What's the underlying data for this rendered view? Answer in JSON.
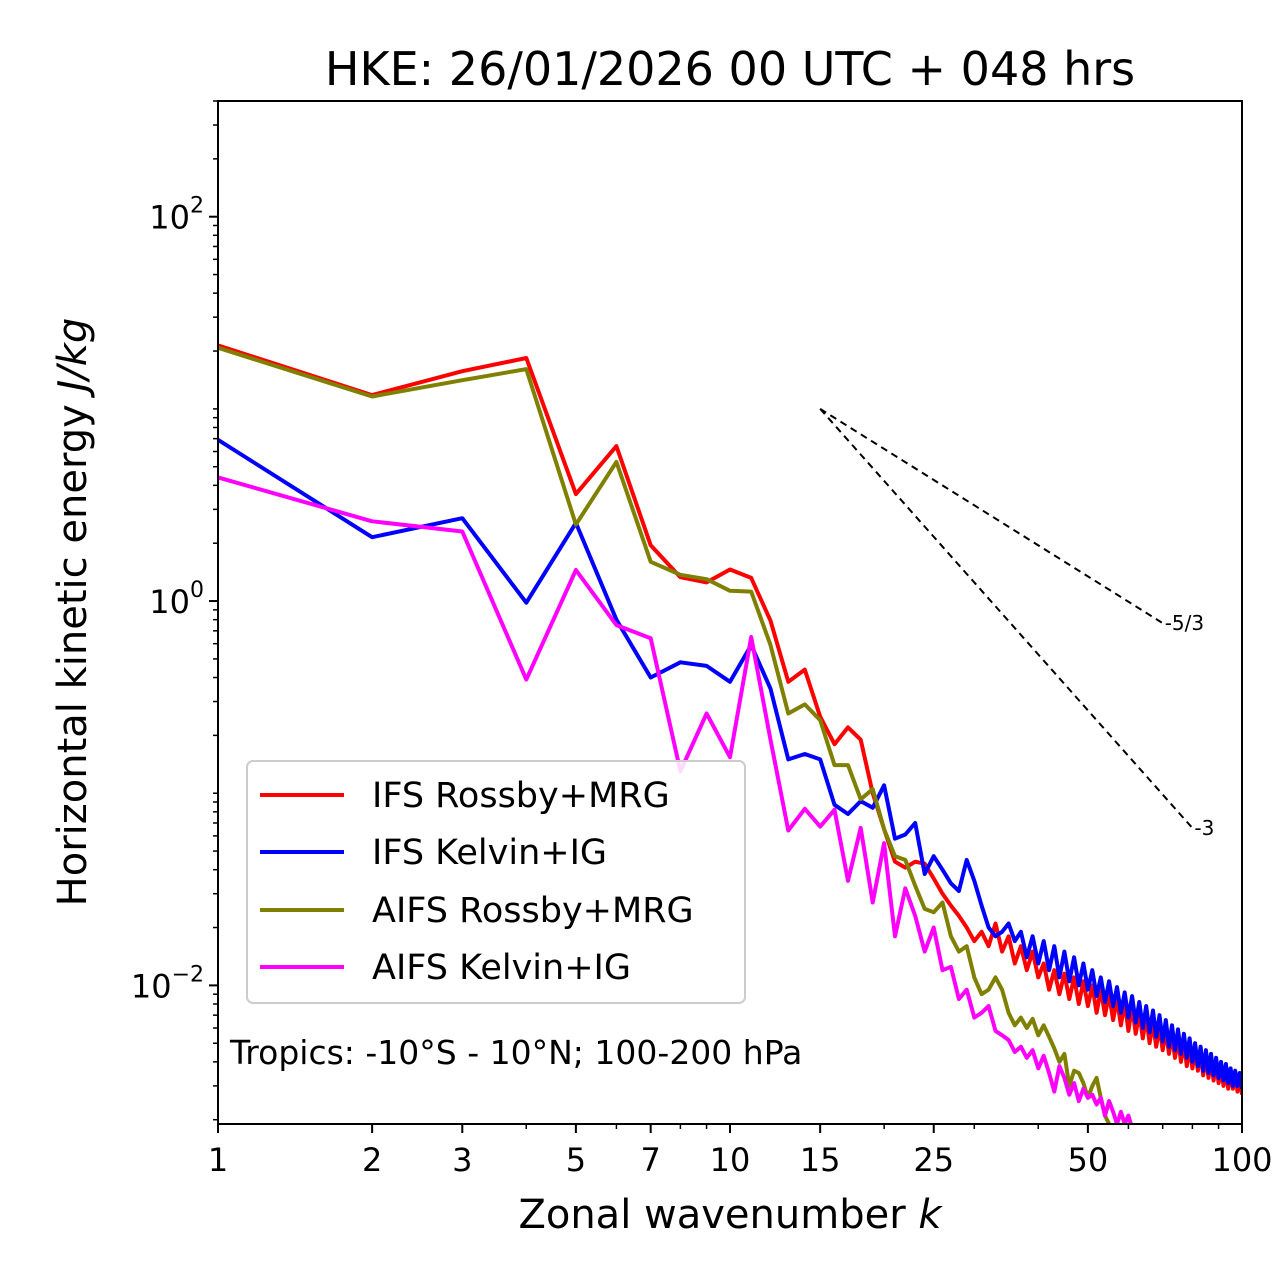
{
  "chart_data": {
    "type": "line",
    "title": "HKE: 26/01/2026 00 UTC + 048 hrs",
    "xlabel": "Zonal wavenumber",
    "xlabel_var": "k",
    "ylabel": "Horizontal kinetic energy",
    "ylabel_units": "J/kg",
    "xscale": "log",
    "yscale": "log",
    "xlim": [
      1,
      100
    ],
    "ylim": [
      0.0019,
      400
    ],
    "x_ticks": [
      1,
      2,
      3,
      5,
      7,
      10,
      15,
      25,
      50,
      100
    ],
    "x_tick_labels": [
      "1",
      "2",
      "3",
      "5",
      "7",
      "10",
      "15",
      "25",
      "50",
      "100"
    ],
    "y_ticks": [
      {
        "value": 100,
        "base": "10",
        "exp": "2"
      },
      {
        "value": 1,
        "base": "10",
        "exp": "0"
      },
      {
        "value": 0.01,
        "base": "10",
        "exp": "−2"
      }
    ],
    "annotation": "Tropics: -10°S - 10°N; 100-200 hPa",
    "legend_position": "lower-left",
    "reference_slopes": [
      {
        "label": "-5/3",
        "slope": -1.6667,
        "x_start": 15,
        "x_end": 70,
        "y_start": 10.0
      },
      {
        "label": "-3",
        "slope": -3,
        "x_start": 15,
        "x_end": 80,
        "y_start": 10.0
      }
    ],
    "series": [
      {
        "name": "IFS Rossby+MRG",
        "color": "#ff0000",
        "x": [
          1,
          2,
          3,
          4,
          5,
          6,
          7,
          8,
          9,
          10,
          11,
          12,
          13,
          14,
          15,
          16,
          17,
          18,
          19,
          20,
          21,
          22,
          23,
          24,
          25,
          26,
          27,
          28,
          29,
          30,
          31,
          32,
          33,
          34,
          35,
          36,
          37,
          38,
          39,
          40,
          41,
          42,
          43,
          44,
          45,
          46,
          47,
          48,
          49,
          50,
          51,
          52,
          53,
          54,
          55,
          56,
          57,
          58,
          59,
          60,
          61,
          62,
          63,
          64,
          65,
          66,
          67,
          68,
          69,
          70,
          71,
          72,
          73,
          74,
          75,
          76,
          77,
          78,
          79,
          80,
          81,
          82,
          83,
          84,
          85,
          86,
          87,
          88,
          89,
          90,
          91,
          92,
          93,
          94,
          95,
          96,
          97,
          98,
          99,
          100
        ],
        "values": [
          21.4,
          11.8,
          15.7,
          18.4,
          3.6,
          6.4,
          1.95,
          1.33,
          1.25,
          1.46,
          1.32,
          0.79,
          0.38,
          0.44,
          0.25,
          0.18,
          0.22,
          0.19,
          0.1,
          0.065,
          0.044,
          0.041,
          0.044,
          0.043,
          0.036,
          0.03,
          0.026,
          0.023,
          0.02,
          0.017,
          0.019,
          0.016,
          0.021,
          0.015,
          0.018,
          0.013,
          0.016,
          0.012,
          0.015,
          0.011,
          0.013,
          0.0095,
          0.012,
          0.009,
          0.0115,
          0.0085,
          0.011,
          0.008,
          0.0105,
          0.0078,
          0.01,
          0.0072,
          0.0095,
          0.007,
          0.009,
          0.0066,
          0.0085,
          0.0062,
          0.0082,
          0.0058,
          0.0078,
          0.0056,
          0.0072,
          0.0053,
          0.0069,
          0.005,
          0.0064,
          0.0048,
          0.0061,
          0.0046,
          0.0058,
          0.0044,
          0.0055,
          0.0042,
          0.0053,
          0.004,
          0.0051,
          0.0038,
          0.0048,
          0.0037,
          0.0046,
          0.0036,
          0.0045,
          0.0034,
          0.0043,
          0.0033,
          0.0041,
          0.0032,
          0.004,
          0.0031,
          0.0038,
          0.003,
          0.0037,
          0.0029,
          0.0036,
          0.0029,
          0.0035,
          0.0028,
          0.0034,
          0.0027
        ]
      },
      {
        "name": "IFS Kelvin+IG",
        "color": "#0000ff",
        "x": [
          1,
          2,
          3,
          4,
          5,
          6,
          7,
          8,
          9,
          10,
          11,
          12,
          13,
          14,
          15,
          16,
          17,
          18,
          19,
          20,
          21,
          22,
          23,
          24,
          25,
          26,
          27,
          28,
          29,
          30,
          31,
          32,
          33,
          34,
          35,
          36,
          37,
          38,
          39,
          40,
          41,
          42,
          43,
          44,
          45,
          46,
          47,
          48,
          49,
          50,
          51,
          52,
          53,
          54,
          55,
          56,
          57,
          58,
          59,
          60,
          61,
          62,
          63,
          64,
          65,
          66,
          67,
          68,
          69,
          70,
          71,
          72,
          73,
          74,
          75,
          76,
          77,
          78,
          79,
          80,
          81,
          82,
          83,
          84,
          85,
          86,
          87,
          88,
          89,
          90,
          91,
          92,
          93,
          94,
          95,
          96,
          97,
          98,
          99,
          100
        ],
        "values": [
          6.9,
          2.15,
          2.7,
          0.98,
          2.55,
          0.8,
          0.4,
          0.48,
          0.46,
          0.38,
          0.59,
          0.35,
          0.15,
          0.16,
          0.15,
          0.087,
          0.078,
          0.091,
          0.084,
          0.11,
          0.058,
          0.061,
          0.07,
          0.038,
          0.047,
          0.04,
          0.034,
          0.031,
          0.045,
          0.035,
          0.026,
          0.02,
          0.018,
          0.019,
          0.021,
          0.017,
          0.019,
          0.014,
          0.018,
          0.013,
          0.017,
          0.012,
          0.016,
          0.011,
          0.015,
          0.0105,
          0.014,
          0.01,
          0.013,
          0.0095,
          0.012,
          0.0088,
          0.011,
          0.0082,
          0.0105,
          0.0078,
          0.0098,
          0.0072,
          0.0092,
          0.0068,
          0.0088,
          0.0064,
          0.0082,
          0.006,
          0.0078,
          0.0057,
          0.0074,
          0.0054,
          0.007,
          0.0051,
          0.0066,
          0.0048,
          0.0062,
          0.0046,
          0.0059,
          0.0044,
          0.0056,
          0.0042,
          0.0053,
          0.004,
          0.005,
          0.0038,
          0.0048,
          0.0036,
          0.0046,
          0.0035,
          0.0044,
          0.0034,
          0.0042,
          0.0033,
          0.004,
          0.0032,
          0.0039,
          0.0031,
          0.0037,
          0.003,
          0.0036,
          0.003,
          0.0035,
          0.0029
        ]
      },
      {
        "name": "AIFS Rossby+MRG",
        "color": "#808000",
        "x": [
          1,
          2,
          3,
          4,
          5,
          6,
          7,
          8,
          9,
          10,
          11,
          12,
          13,
          14,
          15,
          16,
          17,
          18,
          19,
          20,
          21,
          22,
          23,
          24,
          25,
          26,
          27,
          28,
          29,
          30,
          31,
          32,
          33,
          34,
          35,
          36,
          37,
          38,
          39,
          40,
          41,
          42,
          43,
          44,
          45,
          46,
          47,
          48,
          49,
          50,
          51,
          52,
          53,
          54,
          55,
          56
        ],
        "values": [
          20.8,
          11.6,
          14.1,
          16.1,
          2.5,
          5.3,
          1.6,
          1.37,
          1.3,
          1.13,
          1.12,
          0.59,
          0.26,
          0.29,
          0.24,
          0.14,
          0.14,
          0.093,
          0.105,
          0.065,
          0.047,
          0.045,
          0.033,
          0.025,
          0.024,
          0.027,
          0.018,
          0.015,
          0.016,
          0.011,
          0.009,
          0.0095,
          0.011,
          0.0095,
          0.0072,
          0.0062,
          0.0068,
          0.006,
          0.0067,
          0.0055,
          0.0062,
          0.0054,
          0.0047,
          0.004,
          0.0044,
          0.003,
          0.0036,
          0.0035,
          0.0031,
          0.0026,
          0.003,
          0.0033,
          0.0026,
          0.0021,
          0.0019,
          0.0017
        ]
      },
      {
        "name": "AIFS Kelvin+IG",
        "color": "#ff00ff",
        "x": [
          1,
          2,
          3,
          4,
          5,
          6,
          7,
          8,
          9,
          10,
          11,
          12,
          13,
          14,
          15,
          16,
          17,
          18,
          19,
          20,
          21,
          22,
          23,
          24,
          25,
          26,
          27,
          28,
          29,
          30,
          31,
          32,
          33,
          34,
          35,
          36,
          37,
          38,
          39,
          40,
          41,
          42,
          43,
          44,
          45,
          46,
          47,
          48,
          49,
          50,
          51,
          52,
          53,
          54,
          55,
          56,
          57,
          58,
          59,
          60,
          61
        ],
        "values": [
          4.4,
          2.6,
          2.3,
          0.39,
          1.45,
          0.75,
          0.64,
          0.13,
          0.26,
          0.154,
          0.65,
          0.19,
          0.064,
          0.083,
          0.067,
          0.082,
          0.035,
          0.066,
          0.027,
          0.055,
          0.018,
          0.032,
          0.023,
          0.015,
          0.02,
          0.012,
          0.0125,
          0.0085,
          0.0095,
          0.0068,
          0.0072,
          0.0078,
          0.0058,
          0.0055,
          0.0052,
          0.0045,
          0.0048,
          0.0042,
          0.0046,
          0.0037,
          0.0043,
          0.0035,
          0.0028,
          0.0038,
          0.0033,
          0.0027,
          0.0031,
          0.0025,
          0.0029,
          0.0026,
          0.0027,
          0.0024,
          0.0026,
          0.0021,
          0.0025,
          0.0022,
          0.0019,
          0.0022,
          0.0019,
          0.0021,
          0.0018
        ]
      }
    ]
  }
}
